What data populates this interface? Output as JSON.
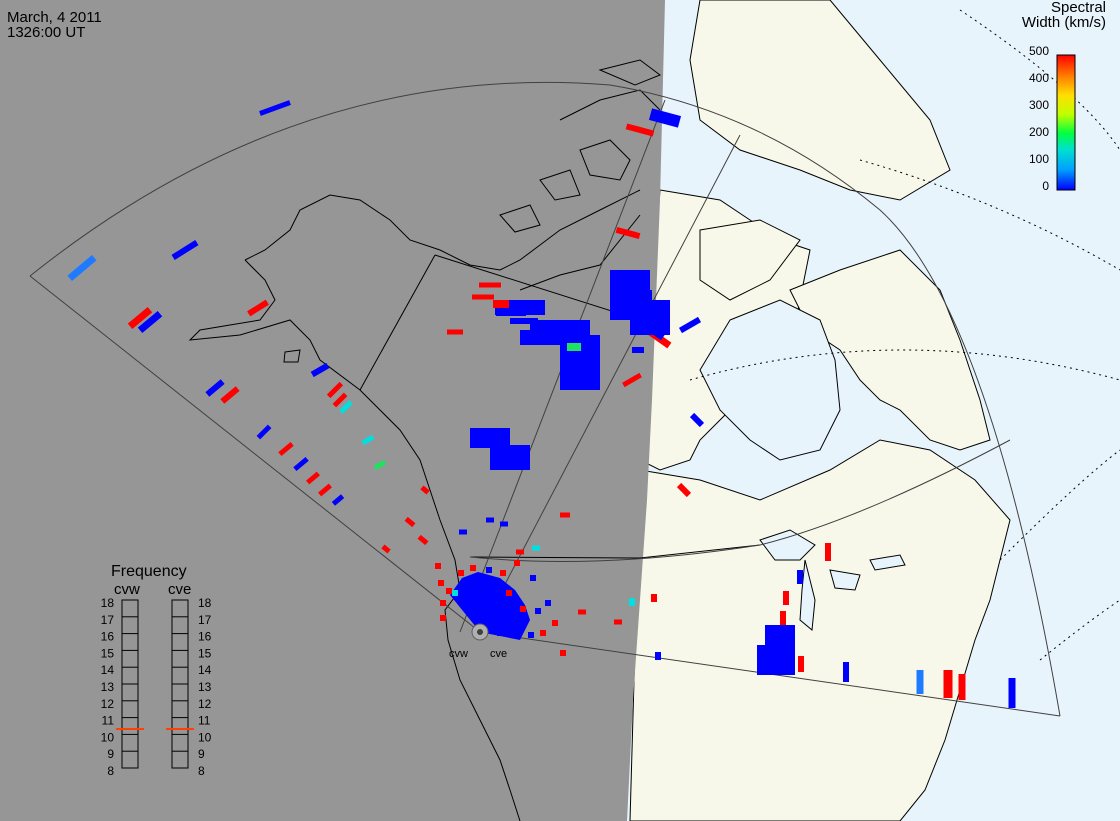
{
  "header": {
    "date": "March, 4 2011",
    "time": "1326:00 UT"
  },
  "colorbar": {
    "title_line1": "Spectral",
    "title_line2": "Width (km/s)",
    "ticks": [
      "500",
      "400",
      "300",
      "200",
      "100",
      "0"
    ],
    "value_range": [
      0,
      500
    ],
    "colors": [
      "#0000ff",
      "#00a0ff",
      "#00e0d0",
      "#00ff40",
      "#c0ff00",
      "#ffe000",
      "#ff8000",
      "#ff0000"
    ]
  },
  "frequency": {
    "title": "Frequency",
    "radars": [
      {
        "name": "cvw",
        "selected_mhz": 10.5
      },
      {
        "name": "cve",
        "selected_mhz": 10.5
      }
    ],
    "scale": [
      "18",
      "17",
      "16",
      "15",
      "14",
      "13",
      "12",
      "11",
      "10",
      "9",
      "8"
    ]
  },
  "site_labels": {
    "west": "cvw",
    "east": "cve"
  },
  "colors": {
    "night": "#969696",
    "day_ocean": "#e8f4fc",
    "day_land": "#f8f8ea",
    "low_width": "#0000ff",
    "high_width": "#ff0000",
    "frequency_marker": "#ff4000"
  }
}
